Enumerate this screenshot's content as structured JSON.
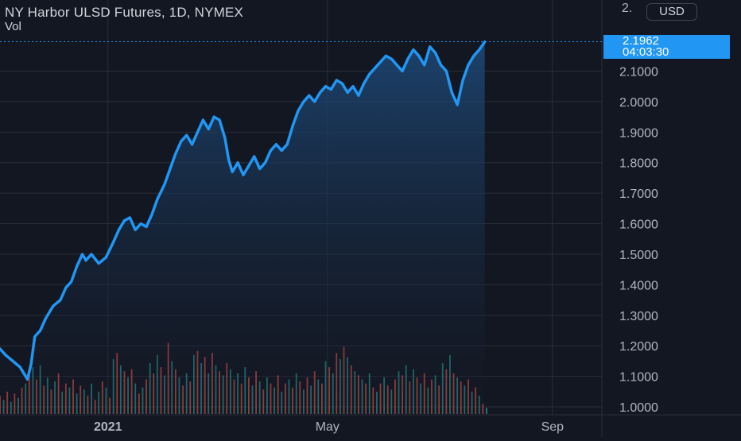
{
  "header": {
    "title": "NY Harbor ULSD Futures, 1D, NYMEX",
    "subtitle": "Vol",
    "currency_button": "USD",
    "top_axis_label": "2."
  },
  "last_price": {
    "value": "2.1962",
    "countdown": "04:03:30"
  },
  "colors": {
    "background": "#131722",
    "line": "#2196f3",
    "area_top": "#1e4a7a",
    "grid": "#2a2e39",
    "volume_up": "#26a69a",
    "volume_down": "#ef5350",
    "axis_text": "#b2b5be"
  },
  "chart_data": {
    "type": "area",
    "title": "NY Harbor ULSD Futures, 1D, NYMEX",
    "xlabel": "",
    "ylabel": "",
    "ylim": [
      0.98,
      2.22
    ],
    "y_ticks": [
      "1.0000",
      "1.1000",
      "1.2000",
      "1.3000",
      "1.4000",
      "1.5000",
      "1.6000",
      "1.7000",
      "1.8000",
      "1.9000",
      "2.0000",
      "2.1000"
    ],
    "x_tick_labels": [
      {
        "label": "2021",
        "date": "2021-01-01"
      },
      {
        "label": "May",
        "date": "2021-05-01"
      },
      {
        "label": "Sep",
        "date": "2021-09-01"
      }
    ],
    "x_range": [
      "2020-11-03",
      "2021-12-05"
    ],
    "grid": true,
    "series": [
      {
        "points": [
          [
            "2020-11-03",
            1.19
          ],
          [
            "2020-11-06",
            1.17
          ],
          [
            "2020-11-10",
            1.15
          ],
          [
            "2020-11-14",
            1.13
          ],
          [
            "2020-11-16",
            1.11
          ],
          [
            "2020-11-18",
            1.09
          ],
          [
            "2020-11-20",
            1.14
          ],
          [
            "2020-11-22",
            1.23
          ],
          [
            "2020-11-25",
            1.25
          ],
          [
            "2020-11-28",
            1.29
          ],
          [
            "2020-12-02",
            1.33
          ],
          [
            "2020-12-06",
            1.35
          ],
          [
            "2020-12-09",
            1.39
          ],
          [
            "2020-12-12",
            1.41
          ],
          [
            "2020-12-15",
            1.46
          ],
          [
            "2020-12-18",
            1.5
          ],
          [
            "2020-12-20",
            1.48
          ],
          [
            "2020-12-23",
            1.5
          ],
          [
            "2020-12-27",
            1.47
          ],
          [
            "2020-12-31",
            1.49
          ],
          [
            "2021-01-04",
            1.54
          ],
          [
            "2021-01-07",
            1.58
          ],
          [
            "2021-01-10",
            1.61
          ],
          [
            "2021-01-13",
            1.62
          ],
          [
            "2021-01-16",
            1.58
          ],
          [
            "2021-01-19",
            1.6
          ],
          [
            "2021-01-22",
            1.59
          ],
          [
            "2021-01-25",
            1.63
          ],
          [
            "2021-01-28",
            1.68
          ],
          [
            "2021-02-01",
            1.73
          ],
          [
            "2021-02-04",
            1.78
          ],
          [
            "2021-02-07",
            1.83
          ],
          [
            "2021-02-10",
            1.87
          ],
          [
            "2021-02-13",
            1.89
          ],
          [
            "2021-02-16",
            1.86
          ],
          [
            "2021-02-19",
            1.9
          ],
          [
            "2021-02-22",
            1.94
          ],
          [
            "2021-02-25",
            1.91
          ],
          [
            "2021-02-28",
            1.95
          ],
          [
            "2021-03-03",
            1.94
          ],
          [
            "2021-03-06",
            1.88
          ],
          [
            "2021-03-08",
            1.81
          ],
          [
            "2021-03-10",
            1.77
          ],
          [
            "2021-03-13",
            1.8
          ],
          [
            "2021-03-16",
            1.76
          ],
          [
            "2021-03-19",
            1.79
          ],
          [
            "2021-03-22",
            1.82
          ],
          [
            "2021-03-25",
            1.78
          ],
          [
            "2021-03-28",
            1.8
          ],
          [
            "2021-03-31",
            1.84
          ],
          [
            "2021-04-03",
            1.86
          ],
          [
            "2021-04-06",
            1.84
          ],
          [
            "2021-04-09",
            1.86
          ],
          [
            "2021-04-12",
            1.92
          ],
          [
            "2021-04-15",
            1.97
          ],
          [
            "2021-04-18",
            2.0
          ],
          [
            "2021-04-21",
            2.02
          ],
          [
            "2021-04-24",
            2.0
          ],
          [
            "2021-04-27",
            2.03
          ],
          [
            "2021-04-30",
            2.05
          ],
          [
            "2021-05-03",
            2.04
          ],
          [
            "2021-05-06",
            2.07
          ],
          [
            "2021-05-09",
            2.06
          ],
          [
            "2021-05-12",
            2.03
          ],
          [
            "2021-05-15",
            2.05
          ],
          [
            "2021-05-18",
            2.02
          ],
          [
            "2021-05-21",
            2.06
          ],
          [
            "2021-05-24",
            2.09
          ],
          [
            "2021-05-27",
            2.11
          ],
          [
            "2021-05-30",
            2.13
          ],
          [
            "2021-06-02",
            2.15
          ],
          [
            "2021-06-05",
            2.14
          ],
          [
            "2021-06-08",
            2.12
          ],
          [
            "2021-06-11",
            2.1
          ],
          [
            "2021-06-14",
            2.14
          ],
          [
            "2021-06-17",
            2.17
          ],
          [
            "2021-06-20",
            2.15
          ],
          [
            "2021-06-23",
            2.12
          ],
          [
            "2021-06-26",
            2.18
          ],
          [
            "2021-06-29",
            2.16
          ],
          [
            "2021-07-02",
            2.12
          ],
          [
            "2021-07-05",
            2.1
          ],
          [
            "2021-07-08",
            2.03
          ],
          [
            "2021-07-11",
            1.99
          ],
          [
            "2021-07-14",
            2.07
          ],
          [
            "2021-07-17",
            2.12
          ],
          [
            "2021-07-20",
            2.15
          ],
          [
            "2021-07-23",
            2.17
          ],
          [
            "2021-07-26",
            2.1962
          ]
        ]
      }
    ],
    "volume": {
      "scale_max": 100,
      "bars": [
        [
          "2020-11-03",
          18,
          "down"
        ],
        [
          "2020-11-05",
          14,
          "up"
        ],
        [
          "2020-11-07",
          22,
          "down"
        ],
        [
          "2020-11-09",
          12,
          "up"
        ],
        [
          "2020-11-11",
          20,
          "down"
        ],
        [
          "2020-11-13",
          16,
          "up"
        ],
        [
          "2020-11-15",
          26,
          "down"
        ],
        [
          "2020-11-17",
          30,
          "up"
        ],
        [
          "2020-11-19",
          38,
          "down"
        ],
        [
          "2020-11-21",
          46,
          "up"
        ],
        [
          "2020-11-23",
          34,
          "down"
        ],
        [
          "2020-11-25",
          48,
          "up"
        ],
        [
          "2020-11-27",
          28,
          "down"
        ],
        [
          "2020-11-29",
          36,
          "up"
        ],
        [
          "2020-12-01",
          24,
          "down"
        ],
        [
          "2020-12-03",
          32,
          "up"
        ],
        [
          "2020-12-05",
          40,
          "down"
        ],
        [
          "2020-12-07",
          22,
          "up"
        ],
        [
          "2020-12-09",
          30,
          "down"
        ],
        [
          "2020-12-11",
          26,
          "up"
        ],
        [
          "2020-12-13",
          34,
          "down"
        ],
        [
          "2020-12-15",
          20,
          "up"
        ],
        [
          "2020-12-17",
          28,
          "down"
        ],
        [
          "2020-12-19",
          24,
          "up"
        ],
        [
          "2020-12-21",
          18,
          "down"
        ],
        [
          "2020-12-23",
          30,
          "up"
        ],
        [
          "2020-12-25",
          14,
          "down"
        ],
        [
          "2020-12-27",
          22,
          "up"
        ],
        [
          "2020-12-29",
          32,
          "down"
        ],
        [
          "2020-12-31",
          26,
          "up"
        ],
        [
          "2021-01-02",
          16,
          "down"
        ],
        [
          "2021-01-04",
          54,
          "up"
        ],
        [
          "2021-01-06",
          60,
          "down"
        ],
        [
          "2021-01-08",
          48,
          "up"
        ],
        [
          "2021-01-10",
          42,
          "down"
        ],
        [
          "2021-01-12",
          36,
          "up"
        ],
        [
          "2021-01-14",
          44,
          "down"
        ],
        [
          "2021-01-16",
          30,
          "up"
        ],
        [
          "2021-01-18",
          20,
          "down"
        ],
        [
          "2021-01-20",
          26,
          "up"
        ],
        [
          "2021-01-22",
          34,
          "down"
        ],
        [
          "2021-01-24",
          50,
          "up"
        ],
        [
          "2021-01-26",
          40,
          "down"
        ],
        [
          "2021-01-28",
          58,
          "up"
        ],
        [
          "2021-01-30",
          46,
          "down"
        ],
        [
          "2021-02-01",
          38,
          "up"
        ],
        [
          "2021-02-03",
          70,
          "down"
        ],
        [
          "2021-02-05",
          52,
          "up"
        ],
        [
          "2021-02-07",
          44,
          "down"
        ],
        [
          "2021-02-09",
          36,
          "up"
        ],
        [
          "2021-02-11",
          28,
          "down"
        ],
        [
          "2021-02-13",
          40,
          "up"
        ],
        [
          "2021-02-15",
          32,
          "down"
        ],
        [
          "2021-02-17",
          58,
          "up"
        ],
        [
          "2021-02-19",
          62,
          "down"
        ],
        [
          "2021-02-21",
          50,
          "up"
        ],
        [
          "2021-02-23",
          56,
          "down"
        ],
        [
          "2021-02-25",
          40,
          "up"
        ],
        [
          "2021-02-27",
          60,
          "down"
        ],
        [
          "2021-03-01",
          48,
          "up"
        ],
        [
          "2021-03-03",
          42,
          "down"
        ],
        [
          "2021-03-05",
          38,
          "up"
        ],
        [
          "2021-03-07",
          50,
          "down"
        ],
        [
          "2021-03-09",
          44,
          "up"
        ],
        [
          "2021-03-11",
          34,
          "down"
        ],
        [
          "2021-03-13",
          40,
          "up"
        ],
        [
          "2021-03-15",
          30,
          "down"
        ],
        [
          "2021-03-17",
          46,
          "up"
        ],
        [
          "2021-03-19",
          36,
          "down"
        ],
        [
          "2021-03-21",
          28,
          "up"
        ],
        [
          "2021-03-23",
          42,
          "down"
        ],
        [
          "2021-03-25",
          32,
          "up"
        ],
        [
          "2021-03-27",
          24,
          "down"
        ],
        [
          "2021-03-29",
          36,
          "up"
        ],
        [
          "2021-03-31",
          30,
          "down"
        ],
        [
          "2021-04-02",
          26,
          "up"
        ],
        [
          "2021-04-04",
          38,
          "down"
        ],
        [
          "2021-04-06",
          22,
          "up"
        ],
        [
          "2021-04-08",
          30,
          "down"
        ],
        [
          "2021-04-10",
          34,
          "up"
        ],
        [
          "2021-04-12",
          26,
          "down"
        ],
        [
          "2021-04-14",
          40,
          "up"
        ],
        [
          "2021-04-16",
          32,
          "down"
        ],
        [
          "2021-04-18",
          24,
          "up"
        ],
        [
          "2021-04-20",
          36,
          "down"
        ],
        [
          "2021-04-22",
          28,
          "up"
        ],
        [
          "2021-04-24",
          42,
          "down"
        ],
        [
          "2021-04-26",
          34,
          "up"
        ],
        [
          "2021-04-28",
          30,
          "down"
        ],
        [
          "2021-04-30",
          52,
          "up"
        ],
        [
          "2021-05-02",
          46,
          "down"
        ],
        [
          "2021-05-04",
          40,
          "up"
        ],
        [
          "2021-05-06",
          60,
          "down"
        ],
        [
          "2021-05-08",
          54,
          "up"
        ],
        [
          "2021-05-10",
          66,
          "down"
        ],
        [
          "2021-05-12",
          56,
          "up"
        ],
        [
          "2021-05-14",
          48,
          "down"
        ],
        [
          "2021-05-16",
          42,
          "up"
        ],
        [
          "2021-05-18",
          38,
          "down"
        ],
        [
          "2021-05-20",
          34,
          "up"
        ],
        [
          "2021-05-22",
          30,
          "down"
        ],
        [
          "2021-05-24",
          40,
          "up"
        ],
        [
          "2021-05-26",
          26,
          "down"
        ],
        [
          "2021-05-28",
          22,
          "up"
        ],
        [
          "2021-05-30",
          30,
          "down"
        ],
        [
          "2021-06-01",
          36,
          "up"
        ],
        [
          "2021-06-03",
          28,
          "down"
        ],
        [
          "2021-06-05",
          24,
          "up"
        ],
        [
          "2021-06-07",
          34,
          "down"
        ],
        [
          "2021-06-09",
          42,
          "up"
        ],
        [
          "2021-06-11",
          38,
          "down"
        ],
        [
          "2021-06-13",
          48,
          "up"
        ],
        [
          "2021-06-15",
          32,
          "down"
        ],
        [
          "2021-06-17",
          44,
          "up"
        ],
        [
          "2021-06-19",
          36,
          "down"
        ],
        [
          "2021-06-21",
          30,
          "up"
        ],
        [
          "2021-06-23",
          40,
          "down"
        ],
        [
          "2021-06-25",
          26,
          "up"
        ],
        [
          "2021-06-27",
          34,
          "down"
        ],
        [
          "2021-06-29",
          38,
          "up"
        ],
        [
          "2021-07-01",
          28,
          "down"
        ],
        [
          "2021-07-03",
          50,
          "up"
        ],
        [
          "2021-07-05",
          44,
          "down"
        ],
        [
          "2021-07-07",
          58,
          "up"
        ],
        [
          "2021-07-09",
          40,
          "down"
        ],
        [
          "2021-07-11",
          36,
          "up"
        ],
        [
          "2021-07-13",
          32,
          "down"
        ],
        [
          "2021-07-15",
          28,
          "up"
        ],
        [
          "2021-07-17",
          34,
          "down"
        ],
        [
          "2021-07-19",
          22,
          "up"
        ],
        [
          "2021-07-21",
          26,
          "down"
        ],
        [
          "2021-07-23",
          18,
          "up"
        ],
        [
          "2021-07-25",
          10,
          "down"
        ],
        [
          "2021-07-27",
          6,
          "up"
        ]
      ]
    }
  }
}
